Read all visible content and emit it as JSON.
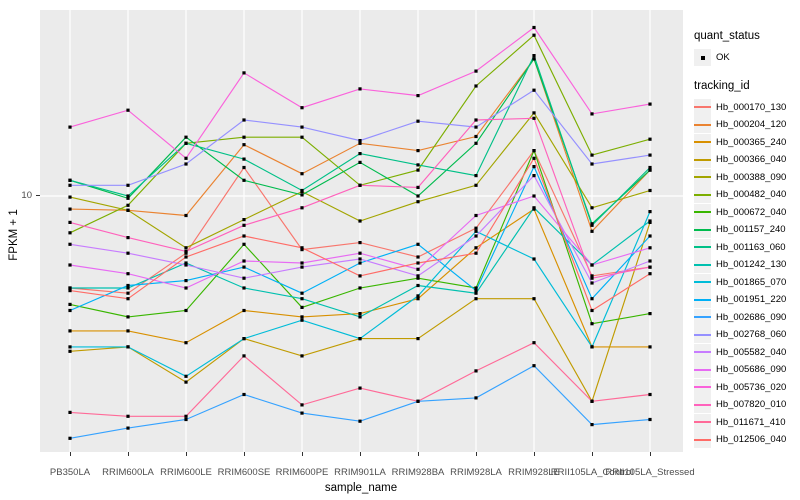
{
  "chart_data": {
    "type": "line",
    "title": "",
    "xlabel": "sample_name",
    "ylabel": "FPKM + 1",
    "y_scale": "log10",
    "ylim": [
      1.02,
      52
    ],
    "grid": "major",
    "legend_position": "right",
    "point_shape_legend": {
      "title": "quant_status",
      "items": [
        {
          "label": "OK"
        }
      ]
    },
    "series_legend_title": "tracking_id",
    "y_ticks": [
      {
        "value": 10,
        "label": "10"
      }
    ],
    "categories": [
      "PB350LA",
      "RRIM600LA",
      "RRIM600LE",
      "RRIM600SE",
      "RRIM600PE",
      "RRIM901LA",
      "RRIM928BA",
      "RRIM928LA",
      "RRIM928LE",
      "RRII105LA_Control",
      "RRII105LA_Stressed"
    ],
    "series": [
      {
        "name": "Hb_000170_130",
        "color": "#F8766D",
        "quant_status": "OK",
        "values": [
          4.4,
          4.2,
          6.0,
          12.9,
          6.2,
          6.6,
          5.8,
          7.5,
          15.0,
          4.9,
          5.3
        ]
      },
      {
        "name": "Hb_000204_120",
        "color": "#EA8331",
        "quant_status": "OK",
        "values": [
          8.9,
          8.8,
          8.4,
          15.8,
          12.2,
          16.0,
          15.0,
          17.0,
          34.0,
          7.3,
          12.6
        ]
      },
      {
        "name": "Hb_000365_240",
        "color": "#D89000",
        "quant_status": "OK",
        "values": [
          3.0,
          3.0,
          2.7,
          3.6,
          3.4,
          3.5,
          4.0,
          6.3,
          8.9,
          2.6,
          2.6
        ]
      },
      {
        "name": "Hb_000366_040",
        "color": "#C09B00",
        "quant_status": "OK",
        "values": [
          2.5,
          2.6,
          1.9,
          2.8,
          2.4,
          2.8,
          2.8,
          4.0,
          4.0,
          1.6,
          7.9
        ]
      },
      {
        "name": "Hb_000388_090",
        "color": "#A3A500",
        "quant_status": "OK",
        "values": [
          9.9,
          8.8,
          6.3,
          8.1,
          10.4,
          8.0,
          9.5,
          11.0,
          21.0,
          9.0,
          10.5
        ]
      },
      {
        "name": "Hb_000482_040",
        "color": "#7CAE00",
        "quant_status": "OK",
        "values": [
          7.2,
          9.2,
          16.0,
          16.9,
          16.9,
          11.0,
          12.6,
          26.7,
          42.0,
          14.4,
          16.6
        ]
      },
      {
        "name": "Hb_000672_040",
        "color": "#39B600",
        "quant_status": "OK",
        "values": [
          3.8,
          3.4,
          3.6,
          6.5,
          3.7,
          4.4,
          4.8,
          4.4,
          15.0,
          3.2,
          3.5
        ]
      },
      {
        "name": "Hb_001157_240",
        "color": "#00BB4E",
        "quant_status": "OK",
        "values": [
          11.5,
          9.8,
          16.9,
          11.5,
          10.1,
          13.5,
          10.0,
          16.0,
          34.0,
          7.8,
          12.6
        ]
      },
      {
        "name": "Hb_001163_060",
        "color": "#00C087",
        "quant_status": "OK",
        "values": [
          11.5,
          10.0,
          16.0,
          13.9,
          10.5,
          14.6,
          13.2,
          12.0,
          35.0,
          7.7,
          12.9
        ]
      },
      {
        "name": "Hb_001242_130",
        "color": "#00C0AF",
        "quant_status": "OK",
        "values": [
          4.4,
          4.4,
          5.5,
          4.4,
          4.0,
          3.4,
          4.5,
          4.2,
          9.0,
          5.4,
          8.0
        ]
      },
      {
        "name": "Hb_001865_070",
        "color": "#00BCD8",
        "quant_status": "OK",
        "values": [
          2.6,
          2.6,
          2.0,
          2.8,
          3.3,
          2.8,
          4.1,
          7.3,
          5.7,
          2.6,
          8.7
        ]
      },
      {
        "name": "Hb_001951_220",
        "color": "#00B0F6",
        "quant_status": "OK",
        "values": [
          3.6,
          4.5,
          4.7,
          5.3,
          4.2,
          5.5,
          6.5,
          4.3,
          13.0,
          4.0,
          7.0
        ]
      },
      {
        "name": "Hb_002686_090",
        "color": "#35A2FF",
        "quant_status": "OK",
        "values": [
          1.15,
          1.26,
          1.36,
          1.7,
          1.44,
          1.34,
          1.6,
          1.65,
          2.2,
          1.3,
          1.36
        ]
      },
      {
        "name": "Hb_002768_060",
        "color": "#9590FF",
        "quant_status": "OK",
        "values": [
          11.0,
          11.0,
          13.3,
          19.7,
          18.5,
          16.4,
          19.5,
          18.5,
          25.7,
          13.3,
          14.4
        ]
      },
      {
        "name": "Hb_005582_040",
        "color": "#C77CFF",
        "quant_status": "OK",
        "values": [
          6.5,
          6.0,
          5.4,
          4.8,
          5.3,
          5.7,
          4.9,
          7.0,
          12.0,
          4.6,
          5.6
        ]
      },
      {
        "name": "Hb_005686_090",
        "color": "#E76BF3",
        "quant_status": "OK",
        "values": [
          5.4,
          5.0,
          4.4,
          5.6,
          5.5,
          6.0,
          5.2,
          8.4,
          10.0,
          5.4,
          6.3
        ]
      },
      {
        "name": "Hb_005736_020",
        "color": "#FA62DB",
        "quant_status": "OK",
        "values": [
          18.5,
          21.5,
          14.0,
          30.0,
          22.0,
          26.0,
          24.5,
          30.5,
          45.0,
          20.8,
          22.7
        ]
      },
      {
        "name": "Hb_007820_010",
        "color": "#FF62BC",
        "quant_status": "OK",
        "values": [
          7.9,
          6.9,
          6.1,
          7.7,
          9.0,
          11.0,
          10.8,
          19.7,
          20.0,
          4.8,
          5.3
        ]
      },
      {
        "name": "Hb_011671_410",
        "color": "#FF6A98",
        "quant_status": "OK",
        "values": [
          1.45,
          1.4,
          1.4,
          2.4,
          1.55,
          1.8,
          1.6,
          2.1,
          2.7,
          1.6,
          1.7
        ]
      },
      {
        "name": "Hb_012506_040",
        "color": "#FF6C67",
        "quant_status": "OK",
        "values": [
          4.3,
          4.0,
          5.8,
          7.0,
          6.3,
          4.9,
          5.5,
          6.0,
          14.0,
          3.6,
          5.0
        ]
      }
    ]
  },
  "legend": {
    "quant_status_title": "quant_status",
    "quant_status_items": [
      {
        "label": "OK"
      }
    ],
    "tracking_id_title": "tracking_id"
  },
  "colors": {
    "panel_bg": "#EBEBEB",
    "grid": "#FFFFFF",
    "point": "#000000",
    "legend_key_bg": "#F0F0F0",
    "tick": "#333333",
    "tick_text": "#4D4D4D"
  }
}
